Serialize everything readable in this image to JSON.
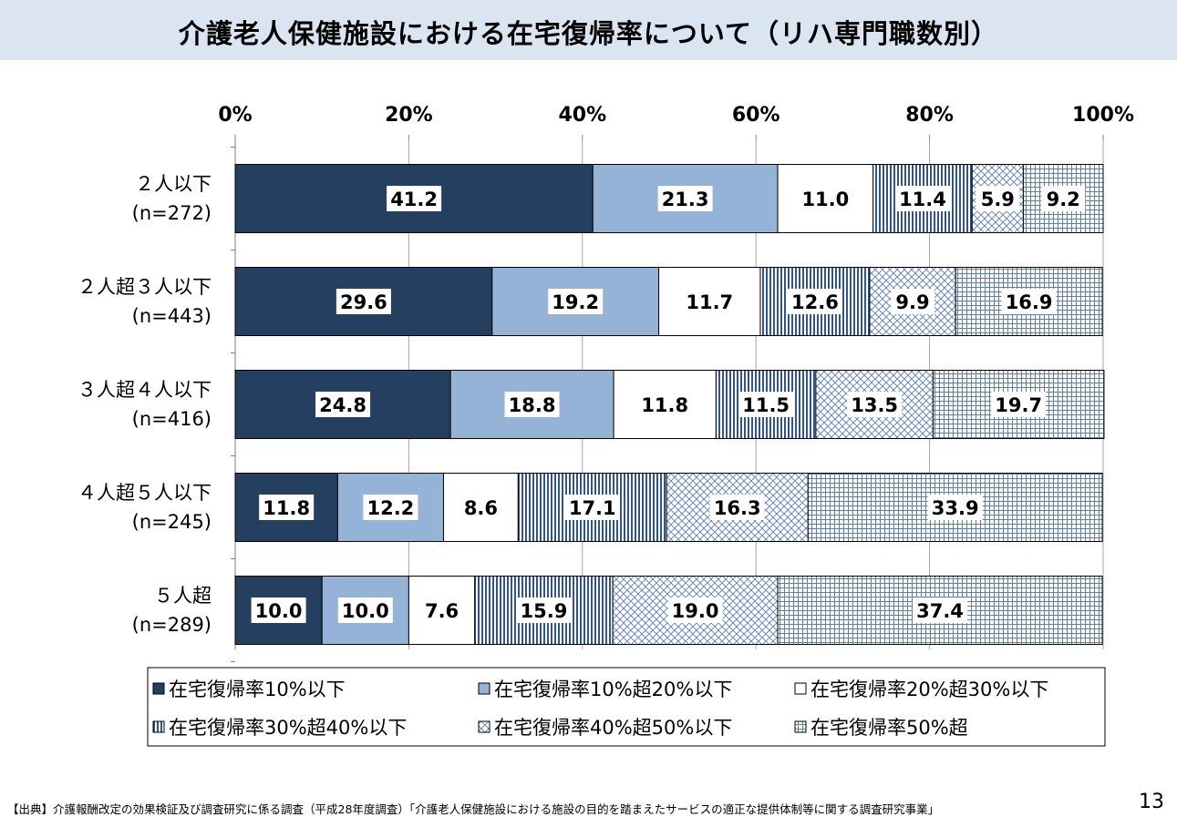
{
  "header": {
    "title": "介護老人保健施設における在宅復帰率について（リハ専門職数別）"
  },
  "chart_data": {
    "type": "bar",
    "orientation": "horizontal",
    "stacked": true,
    "xlim": [
      0,
      100
    ],
    "x_ticks": [
      "0%",
      "20%",
      "40%",
      "60%",
      "80%",
      "100%"
    ],
    "categories": [
      {
        "label": "２人以下",
        "n": "(n=272)"
      },
      {
        "label": "２人超３人以下",
        "n": "(n=443)"
      },
      {
        "label": "３人超４人以下",
        "n": "(n=416)"
      },
      {
        "label": "４人超５人以下",
        "n": "(n=245)"
      },
      {
        "label": "５人超",
        "n": "(n=289)"
      }
    ],
    "series": [
      {
        "name": "在宅復帰率10%以下",
        "pattern": "solid-dark",
        "color": "#243f60",
        "values": [
          41.2,
          29.6,
          24.8,
          11.8,
          10.0
        ]
      },
      {
        "name": "在宅復帰率10%超20%以下",
        "pattern": "solid-light",
        "color": "#95b3d7",
        "values": [
          21.3,
          19.2,
          18.8,
          12.2,
          10.0
        ]
      },
      {
        "name": "在宅復帰率20%超30%以下",
        "pattern": "white",
        "color": "#ffffff",
        "values": [
          11.0,
          11.7,
          11.8,
          8.6,
          7.6
        ]
      },
      {
        "name": "在宅復帰率30%超40%以下",
        "pattern": "vertical-stripes",
        "color": "#1f4e79",
        "values": [
          11.4,
          12.6,
          11.5,
          17.1,
          15.9
        ]
      },
      {
        "name": "在宅復帰率40%超50%以下",
        "pattern": "diagonal-crosshatch",
        "color": "#4a6f9a",
        "values": [
          5.9,
          9.9,
          13.5,
          16.3,
          19.0
        ]
      },
      {
        "name": "在宅復帰率50%超",
        "pattern": "grid",
        "color": "#4a6f9a",
        "values": [
          9.2,
          16.9,
          19.7,
          33.9,
          37.4
        ]
      }
    ],
    "data_labels": [
      [
        "41.2",
        "21.3",
        "11.0",
        "11.4",
        "5.9",
        "9.2"
      ],
      [
        "29.6",
        "19.2",
        "11.7",
        "12.6",
        "9.9",
        "16.9"
      ],
      [
        "24.8",
        "18.8",
        "11.8",
        "11.5",
        "13.5",
        "19.7"
      ],
      [
        "11.8",
        "12.2",
        "8.6",
        "17.1",
        "16.3",
        "33.9"
      ],
      [
        "10.0",
        "10.0",
        "7.6",
        "15.9",
        "19.0",
        "37.4"
      ]
    ],
    "legend_position": "bottom",
    "grid": true
  },
  "footer": {
    "source_note": "【出典】介護報酬改定の効果検証及び調査研究に係る調査（平成28年度調査）「介護老人保健施設における施設の目的を踏まえたサービスの適正な提供体制等に関する調査研究事業」",
    "page_number": "13"
  }
}
